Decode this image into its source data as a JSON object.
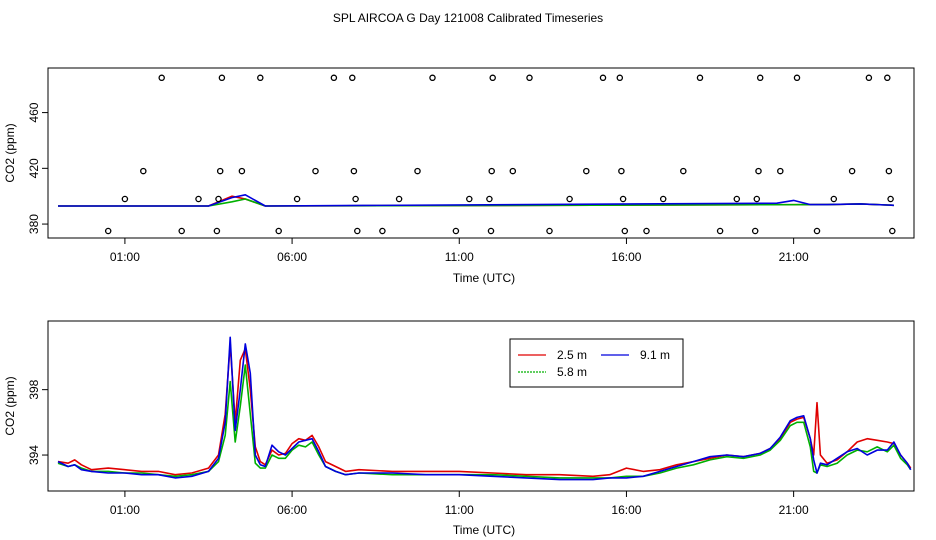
{
  "title": "SPL AIRCOA G  Day 121008  Calibrated Timeseries",
  "time_ticks": [
    "01:00",
    "06:00",
    "11:00",
    "16:00",
    "21:00"
  ],
  "colors": {
    "red": "#e00000",
    "green": "#00b000",
    "blue": "#0000dd"
  },
  "chart_data": [
    {
      "type": "scatter",
      "title": "",
      "xlabel": "Time (UTC)",
      "ylabel": "CO2 (ppm)",
      "xlim_hours": [
        -1.3,
        24.6
      ],
      "ylim": [
        370,
        492
      ],
      "yticks": [
        380,
        420,
        460
      ],
      "ytick_labels": [
        "380",
        "420",
        "460"
      ],
      "xticks_hours": [
        1,
        6,
        11,
        16,
        21
      ],
      "points": [
        {
          "t": 0.5,
          "v": 375
        },
        {
          "t": 1.0,
          "v": 398
        },
        {
          "t": 1.55,
          "v": 418
        },
        {
          "t": 2.1,
          "v": 485
        },
        {
          "t": 2.7,
          "v": 375
        },
        {
          "t": 3.2,
          "v": 398
        },
        {
          "t": 3.75,
          "v": 375
        },
        {
          "t": 3.8,
          "v": 398
        },
        {
          "t": 3.85,
          "v": 418
        },
        {
          "t": 3.9,
          "v": 485
        },
        {
          "t": 4.5,
          "v": 418
        },
        {
          "t": 5.05,
          "v": 485
        },
        {
          "t": 5.6,
          "v": 375
        },
        {
          "t": 6.15,
          "v": 398
        },
        {
          "t": 6.7,
          "v": 418
        },
        {
          "t": 7.25,
          "v": 485
        },
        {
          "t": 7.8,
          "v": 485
        },
        {
          "t": 7.85,
          "v": 418
        },
        {
          "t": 7.9,
          "v": 398
        },
        {
          "t": 7.95,
          "v": 375
        },
        {
          "t": 8.7,
          "v": 375
        },
        {
          "t": 9.2,
          "v": 398
        },
        {
          "t": 9.75,
          "v": 418
        },
        {
          "t": 10.2,
          "v": 485
        },
        {
          "t": 10.9,
          "v": 375
        },
        {
          "t": 11.3,
          "v": 398
        },
        {
          "t": 11.9,
          "v": 398
        },
        {
          "t": 11.95,
          "v": 375
        },
        {
          "t": 11.97,
          "v": 418
        },
        {
          "t": 12.0,
          "v": 485
        },
        {
          "t": 12.6,
          "v": 418
        },
        {
          "t": 13.1,
          "v": 485
        },
        {
          "t": 13.7,
          "v": 375
        },
        {
          "t": 14.3,
          "v": 398
        },
        {
          "t": 14.8,
          "v": 418
        },
        {
          "t": 15.3,
          "v": 485
        },
        {
          "t": 15.8,
          "v": 485
        },
        {
          "t": 15.85,
          "v": 418
        },
        {
          "t": 15.9,
          "v": 398
        },
        {
          "t": 15.95,
          "v": 375
        },
        {
          "t": 16.6,
          "v": 375
        },
        {
          "t": 17.1,
          "v": 398
        },
        {
          "t": 17.7,
          "v": 418
        },
        {
          "t": 18.2,
          "v": 485
        },
        {
          "t": 18.8,
          "v": 375
        },
        {
          "t": 19.3,
          "v": 398
        },
        {
          "t": 19.85,
          "v": 375
        },
        {
          "t": 19.9,
          "v": 398
        },
        {
          "t": 19.95,
          "v": 418
        },
        {
          "t": 20.0,
          "v": 485
        },
        {
          "t": 20.6,
          "v": 418
        },
        {
          "t": 21.1,
          "v": 485
        },
        {
          "t": 21.7,
          "v": 375
        },
        {
          "t": 22.2,
          "v": 398
        },
        {
          "t": 22.75,
          "v": 418
        },
        {
          "t": 23.25,
          "v": 485
        },
        {
          "t": 23.8,
          "v": 485
        },
        {
          "t": 23.85,
          "v": 418
        },
        {
          "t": 23.9,
          "v": 398
        },
        {
          "t": 23.95,
          "v": 375
        }
      ],
      "series": [
        {
          "name": "2.5 m",
          "color": "#e00000",
          "x": [
            -1,
            2,
            3.5,
            4.2,
            4.6,
            5.2,
            22,
            23,
            24
          ],
          "y": [
            393,
            393,
            393,
            400,
            398,
            393,
            394,
            394.5,
            393.5
          ]
        },
        {
          "name": "5.8 m",
          "color": "#00b000",
          "x": [
            -1,
            2,
            3.5,
            4.2,
            4.6,
            5.2,
            22,
            23,
            24
          ],
          "y": [
            393,
            393,
            393,
            396,
            398,
            393,
            394,
            394.5,
            393.5
          ]
        },
        {
          "name": "9.1 m",
          "color": "#0000dd",
          "x": [
            -1,
            2,
            3.5,
            4.2,
            4.6,
            5.2,
            20.5,
            21.0,
            21.5,
            22,
            23,
            24
          ],
          "y": [
            393,
            393,
            393,
            399,
            401,
            393,
            395,
            397,
            394,
            394,
            394.5,
            393.5
          ]
        }
      ]
    },
    {
      "type": "line",
      "title": "",
      "xlabel": "Time (UTC)",
      "ylabel": "CO2 (ppm)",
      "xlim_hours": [
        -1.3,
        24.6
      ],
      "ylim": [
        391.8,
        402.2
      ],
      "yticks": [
        394,
        398
      ],
      "ytick_labels": [
        "394",
        "398"
      ],
      "xticks_hours": [
        1,
        6,
        11,
        16,
        21
      ],
      "legend": [
        "2.5 m",
        "5.8 m",
        "9.1 m"
      ],
      "series": [
        {
          "name": "2.5 m",
          "color": "#e00000",
          "x": [
            -1,
            -0.7,
            -0.5,
            -0.3,
            0,
            0.5,
            1,
            1.5,
            2,
            2.5,
            3,
            3.5,
            3.8,
            4.0,
            4.15,
            4.3,
            4.45,
            4.6,
            4.75,
            4.9,
            5.05,
            5.2,
            5.4,
            5.6,
            5.8,
            6.0,
            6.2,
            6.4,
            6.6,
            6.8,
            7.0,
            7.3,
            7.6,
            8.0,
            9,
            10,
            11,
            12,
            13,
            14,
            15,
            15.5,
            16,
            16.5,
            17,
            17.5,
            18,
            18.5,
            19,
            19.5,
            20,
            20.3,
            20.6,
            20.9,
            21.1,
            21.3,
            21.5,
            21.6,
            21.7,
            21.8,
            22.0,
            22.3,
            22.6,
            22.9,
            23.2,
            23.5,
            23.8,
            24.0,
            24.2,
            24.4,
            24.5
          ],
          "y": [
            393.6,
            393.5,
            393.7,
            393.4,
            393.1,
            393.2,
            393.1,
            393.0,
            393.0,
            392.8,
            392.9,
            393.2,
            394.0,
            396.5,
            400.8,
            396.0,
            399.8,
            400.5,
            398.0,
            394.5,
            393.6,
            393.4,
            394.3,
            394.0,
            394.1,
            394.7,
            395.0,
            394.9,
            395.2,
            394.5,
            393.6,
            393.3,
            393.0,
            393.1,
            393.0,
            393.0,
            393.0,
            392.9,
            392.8,
            392.8,
            392.7,
            392.8,
            393.2,
            393.0,
            393.1,
            393.4,
            393.6,
            393.8,
            394.0,
            393.9,
            394.1,
            394.4,
            395.0,
            396.0,
            396.2,
            396.3,
            395.0,
            394.0,
            397.2,
            394.0,
            393.5,
            393.7,
            394.2,
            394.8,
            395.0,
            394.9,
            394.8,
            394.7,
            394.0,
            393.5,
            393.2
          ]
        },
        {
          "name": "5.8 m",
          "color": "#00b000",
          "x": [
            -1,
            -0.7,
            -0.5,
            -0.3,
            0,
            0.5,
            1,
            1.5,
            2,
            2.5,
            3,
            3.5,
            3.8,
            4.0,
            4.15,
            4.3,
            4.45,
            4.6,
            4.75,
            4.9,
            5.05,
            5.2,
            5.4,
            5.6,
            5.8,
            6.0,
            6.2,
            6.4,
            6.6,
            6.8,
            7.0,
            7.3,
            7.6,
            8.0,
            9,
            10,
            11,
            12,
            13,
            14,
            15,
            15.5,
            16,
            16.5,
            17,
            17.5,
            18,
            18.5,
            19,
            19.5,
            20,
            20.3,
            20.6,
            20.9,
            21.1,
            21.3,
            21.5,
            21.6,
            21.7,
            21.8,
            22.0,
            22.3,
            22.6,
            22.9,
            23.2,
            23.5,
            23.8,
            24.0,
            24.2,
            24.4,
            24.5
          ],
          "y": [
            393.5,
            393.3,
            393.4,
            393.2,
            393.0,
            393.0,
            392.9,
            392.9,
            392.8,
            392.7,
            392.8,
            393.0,
            393.6,
            395.2,
            398.5,
            394.8,
            397.0,
            399.5,
            396.5,
            393.5,
            393.2,
            393.2,
            394.0,
            393.8,
            393.8,
            394.3,
            394.6,
            394.5,
            394.8,
            394.0,
            393.3,
            393.0,
            392.8,
            392.9,
            392.8,
            392.8,
            392.8,
            392.8,
            392.7,
            392.6,
            392.6,
            392.6,
            392.7,
            392.7,
            392.9,
            393.2,
            393.4,
            393.7,
            393.9,
            393.8,
            394.0,
            394.3,
            394.9,
            395.8,
            396.0,
            396.0,
            394.5,
            393.0,
            392.9,
            393.4,
            393.3,
            393.5,
            394.0,
            394.3,
            394.2,
            394.5,
            394.2,
            394.6,
            393.8,
            393.4,
            393.1
          ]
        },
        {
          "name": "9.1 m",
          "color": "#0000dd",
          "x": [
            -1,
            -0.7,
            -0.5,
            -0.3,
            0,
            0.5,
            1,
            1.5,
            2,
            2.5,
            3,
            3.5,
            3.8,
            4.0,
            4.15,
            4.3,
            4.45,
            4.6,
            4.75,
            4.9,
            5.05,
            5.2,
            5.4,
            5.6,
            5.8,
            6.0,
            6.2,
            6.4,
            6.6,
            6.8,
            7.0,
            7.3,
            7.6,
            8.0,
            9,
            10,
            11,
            12,
            13,
            14,
            15,
            15.5,
            16,
            16.5,
            17,
            17.5,
            18,
            18.5,
            19,
            19.5,
            20,
            20.3,
            20.6,
            20.9,
            21.1,
            21.3,
            21.5,
            21.6,
            21.7,
            21.8,
            22.0,
            22.3,
            22.6,
            22.9,
            23.2,
            23.5,
            23.8,
            24.0,
            24.2,
            24.4,
            24.5
          ],
          "y": [
            393.6,
            393.3,
            393.4,
            393.1,
            393.0,
            392.9,
            392.9,
            392.8,
            392.8,
            392.6,
            392.7,
            393.0,
            393.8,
            396.0,
            401.2,
            395.5,
            398.0,
            400.8,
            399.0,
            394.0,
            393.4,
            393.3,
            394.6,
            394.2,
            394.0,
            394.4,
            394.8,
            394.9,
            395.0,
            394.2,
            393.3,
            393.0,
            392.8,
            392.9,
            392.9,
            392.8,
            392.8,
            392.7,
            392.6,
            392.5,
            392.5,
            392.6,
            392.6,
            392.7,
            393.0,
            393.3,
            393.6,
            393.9,
            394.0,
            393.9,
            394.1,
            394.4,
            395.1,
            396.1,
            396.3,
            396.4,
            395.0,
            393.7,
            392.9,
            393.5,
            393.4,
            393.8,
            394.2,
            394.4,
            394.0,
            394.3,
            394.3,
            394.8,
            394.0,
            393.5,
            393.1
          ]
        }
      ]
    }
  ]
}
